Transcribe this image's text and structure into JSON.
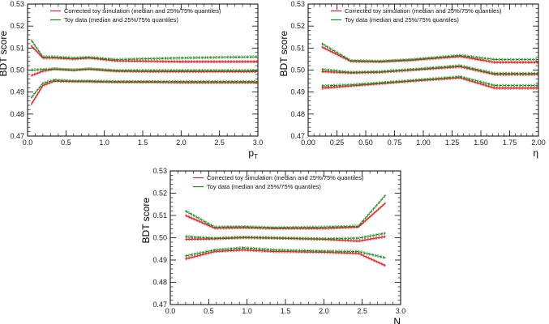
{
  "chart_data": [
    {
      "type": "line",
      "xlabel": "p",
      "xlabel_sub": "T",
      "ylabel": "BDT score",
      "xlim": [
        0.0,
        3.0
      ],
      "ylim": [
        0.47,
        0.53
      ],
      "x_ticks": [
        "0.0",
        "0.5",
        "1.0",
        "1.5",
        "2.0",
        "2.5",
        "3.0"
      ],
      "y_ticks": [
        "0.47",
        "0.48",
        "0.49",
        "0.50",
        "0.51",
        "0.52",
        "0.53"
      ],
      "legend": [
        "Corrected toy simulation (median and 25%/75% quantiles)",
        "Toy data (median and 25%/75% quantiles)"
      ],
      "legend_position": "top-left",
      "series": [
        {
          "name": "Corrected toy simulation q75",
          "color": "#e8202a",
          "x": [
            0.05,
            0.2,
            0.35,
            0.6,
            0.8,
            1.15,
            1.6,
            2.0,
            2.5,
            3.0
          ],
          "values": [
            0.511,
            0.5055,
            0.5055,
            0.505,
            0.5055,
            0.5042,
            0.504,
            0.5038,
            0.5038,
            0.5038
          ]
        },
        {
          "name": "Corrected toy simulation median",
          "color": "#e8202a",
          "x": [
            0.05,
            0.2,
            0.35,
            0.6,
            0.8,
            1.15,
            1.6,
            2.0,
            2.5,
            3.0
          ],
          "values": [
            0.4975,
            0.4995,
            0.5005,
            0.5,
            0.5005,
            0.4995,
            0.4993,
            0.4993,
            0.4993,
            0.4993
          ]
        },
        {
          "name": "Corrected toy simulation q25",
          "color": "#e8202a",
          "x": [
            0.05,
            0.2,
            0.35,
            0.6,
            0.8,
            1.15,
            1.6,
            2.0,
            2.5,
            3.0
          ],
          "values": [
            0.4845,
            0.493,
            0.495,
            0.4948,
            0.4948,
            0.4945,
            0.4945,
            0.4943,
            0.4943,
            0.4943
          ]
        },
        {
          "name": "Toy data q75",
          "color": "#1a8a1a",
          "x": [
            0.05,
            0.2,
            0.35,
            0.6,
            0.8,
            1.15,
            1.6,
            2.0,
            2.5,
            3.0
          ],
          "values": [
            0.5135,
            0.506,
            0.506,
            0.5055,
            0.5058,
            0.5048,
            0.5052,
            0.5055,
            0.5058,
            0.506
          ]
        },
        {
          "name": "Toy data median",
          "color": "#1a8a1a",
          "x": [
            0.05,
            0.2,
            0.35,
            0.6,
            0.8,
            1.15,
            1.6,
            2.0,
            2.5,
            3.0
          ],
          "values": [
            0.5,
            0.5003,
            0.5005,
            0.5,
            0.5005,
            0.4998,
            0.4998,
            0.4998,
            0.4998,
            0.4998
          ]
        },
        {
          "name": "Toy data q25",
          "color": "#1a8a1a",
          "x": [
            0.05,
            0.2,
            0.35,
            0.6,
            0.8,
            1.15,
            1.6,
            2.0,
            2.5,
            3.0
          ],
          "values": [
            0.4875,
            0.494,
            0.4955,
            0.495,
            0.495,
            0.4948,
            0.4948,
            0.4948,
            0.4948,
            0.4948
          ]
        }
      ]
    },
    {
      "type": "line",
      "xlabel": "η",
      "xlabel_sub": "",
      "ylabel": "BDT score",
      "xlim": [
        0.0,
        2.0
      ],
      "ylim": [
        0.47,
        0.53
      ],
      "x_ticks": [
        "0.00",
        "0.25",
        "0.50",
        "0.75",
        "1.00",
        "1.25",
        "1.50",
        "1.75",
        "2.00"
      ],
      "y_ticks": [
        "0.47",
        "0.48",
        "0.49",
        "0.50",
        "0.51",
        "0.52",
        "0.53"
      ],
      "legend": [
        "Corrected toy simulation (median and 25%/75% quantiles)",
        "Toy data (median and 25%/75% quantiles)"
      ],
      "legend_position": "top-left",
      "series": [
        {
          "name": "Corrected toy simulation q75",
          "color": "#e8202a",
          "x": [
            0.12,
            0.37,
            0.62,
            0.9,
            1.32,
            1.62,
            2.0
          ],
          "values": [
            0.5105,
            0.504,
            0.5038,
            0.5045,
            0.5062,
            0.5035,
            0.5035
          ]
        },
        {
          "name": "Corrected toy simulation median",
          "color": "#e8202a",
          "x": [
            0.12,
            0.37,
            0.62,
            0.9,
            1.32,
            1.62,
            2.0
          ],
          "values": [
            0.4993,
            0.4987,
            0.499,
            0.5,
            0.5015,
            0.498,
            0.498
          ]
        },
        {
          "name": "Corrected toy simulation q25",
          "color": "#e8202a",
          "x": [
            0.12,
            0.37,
            0.62,
            0.9,
            1.32,
            1.62,
            2.0
          ],
          "values": [
            0.4918,
            0.4928,
            0.4938,
            0.495,
            0.4965,
            0.4918,
            0.4918
          ]
        },
        {
          "name": "Toy data q75",
          "color": "#1a8a1a",
          "x": [
            0.12,
            0.37,
            0.62,
            0.9,
            1.32,
            1.62,
            2.0
          ],
          "values": [
            0.512,
            0.5043,
            0.504,
            0.5048,
            0.5067,
            0.5048,
            0.5048
          ]
        },
        {
          "name": "Toy data median",
          "color": "#1a8a1a",
          "x": [
            0.12,
            0.37,
            0.62,
            0.9,
            1.32,
            1.62,
            2.0
          ],
          "values": [
            0.5003,
            0.499,
            0.4993,
            0.5003,
            0.502,
            0.4985,
            0.4985
          ]
        },
        {
          "name": "Toy data q25",
          "color": "#1a8a1a",
          "x": [
            0.12,
            0.37,
            0.62,
            0.9,
            1.32,
            1.62,
            2.0
          ],
          "values": [
            0.4928,
            0.4933,
            0.4942,
            0.4953,
            0.497,
            0.493,
            0.493
          ]
        }
      ]
    },
    {
      "type": "line",
      "xlabel": "N",
      "xlabel_sub": "",
      "ylabel": "BDT score",
      "xlim": [
        0.0,
        3.0
      ],
      "ylim": [
        0.47,
        0.53
      ],
      "x_ticks": [
        "0.0",
        "0.5",
        "1.0",
        "1.5",
        "2.0",
        "2.5",
        "3.0"
      ],
      "y_ticks": [
        "0.47",
        "0.48",
        "0.49",
        "0.50",
        "0.51",
        "0.52",
        "0.53"
      ],
      "legend": [
        "Corrected toy simulation (median and 25%/75% quantiles)",
        "Toy data (median and 25%/75% quantiles)"
      ],
      "legend_position": "top-left",
      "series": [
        {
          "name": "Corrected toy simulation q75",
          "color": "#e8202a",
          "x": [
            0.2,
            0.58,
            0.95,
            1.35,
            2.0,
            2.45,
            2.8
          ],
          "values": [
            0.51,
            0.5043,
            0.5045,
            0.5042,
            0.5042,
            0.5048,
            0.5155
          ]
        },
        {
          "name": "Corrected toy simulation median",
          "color": "#e8202a",
          "x": [
            0.2,
            0.58,
            0.95,
            1.35,
            2.0,
            2.45,
            2.8
          ],
          "values": [
            0.4993,
            0.4995,
            0.5,
            0.4998,
            0.4993,
            0.4985,
            0.5005
          ]
        },
        {
          "name": "Corrected toy simulation q25",
          "color": "#e8202a",
          "x": [
            0.2,
            0.58,
            0.95,
            1.35,
            2.0,
            2.45,
            2.8
          ],
          "values": [
            0.4905,
            0.4938,
            0.4945,
            0.4938,
            0.4935,
            0.493,
            0.4875
          ]
        },
        {
          "name": "Toy data q75",
          "color": "#1a8a1a",
          "x": [
            0.2,
            0.58,
            0.95,
            1.35,
            2.0,
            2.45,
            2.8
          ],
          "values": [
            0.512,
            0.5048,
            0.505,
            0.5045,
            0.5048,
            0.5052,
            0.519
          ]
        },
        {
          "name": "Toy data median",
          "color": "#1a8a1a",
          "x": [
            0.2,
            0.58,
            0.95,
            1.35,
            2.0,
            2.45,
            2.8
          ],
          "values": [
            0.5005,
            0.4998,
            0.5003,
            0.5,
            0.4995,
            0.4998,
            0.502
          ]
        },
        {
          "name": "Toy data q25",
          "color": "#1a8a1a",
          "x": [
            0.2,
            0.58,
            0.95,
            1.35,
            2.0,
            2.45,
            2.8
          ],
          "values": [
            0.4918,
            0.4945,
            0.4955,
            0.4945,
            0.494,
            0.4938,
            0.491
          ]
        }
      ]
    }
  ]
}
